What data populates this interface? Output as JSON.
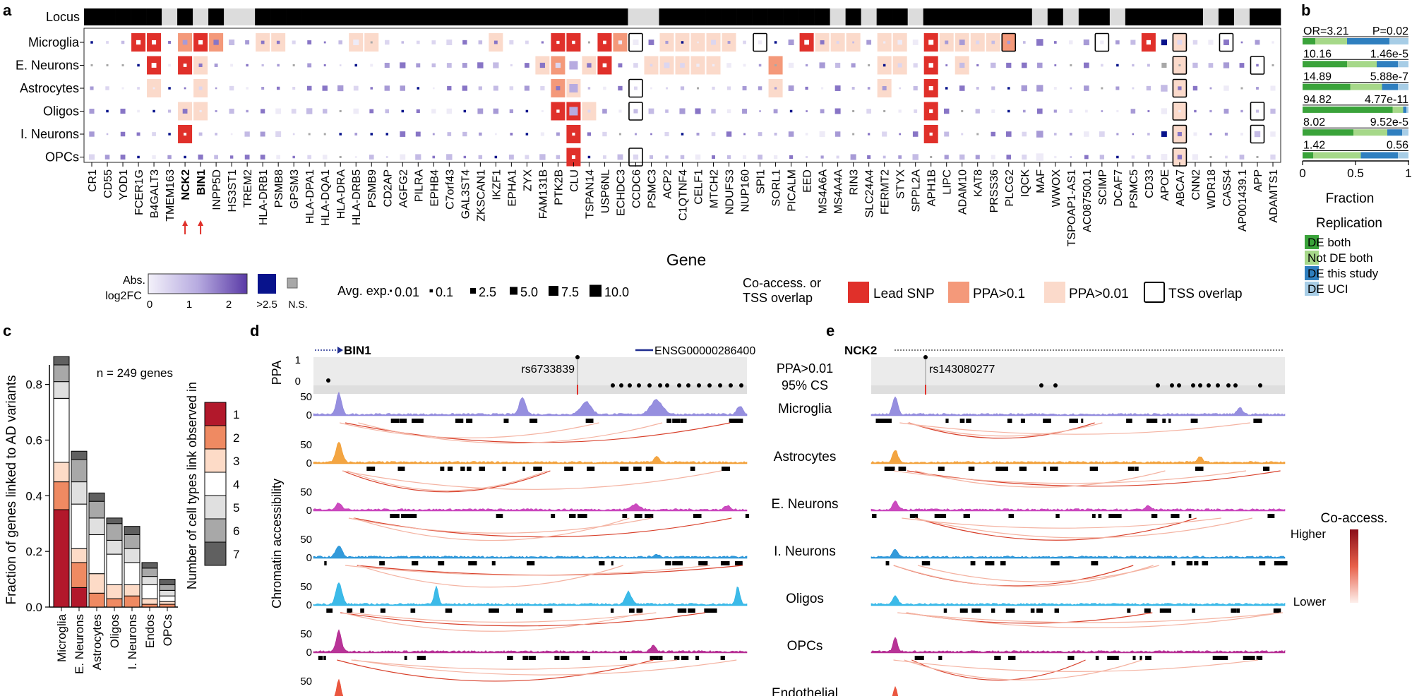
{
  "panels": {
    "a": "a",
    "b": "b",
    "c": "c",
    "d": "d",
    "e": "e"
  },
  "chart_data": [
    {
      "panel": "a",
      "type": "heatmap",
      "locus_label": "Locus",
      "xlabel": "Gene",
      "rows": [
        "Microglia",
        "E. Neurons",
        "Astrocytes",
        "Oligos",
        "I. Neurons",
        "OPCs"
      ],
      "genes": [
        "CR1",
        "CD55",
        "YOD1",
        "FCER1G",
        "B4GALT3",
        "TMEM163",
        "NCK2",
        "BIN1",
        "INPP5D",
        "HS3ST1",
        "TREM2",
        "HLA-DRB1",
        "PSMB8",
        "GPSM3",
        "HLA-DPA1",
        "HLA-DQA1",
        "HLA-DRA",
        "HLA-DRB5",
        "PSMB9",
        "CD2AP",
        "AGFG2",
        "PILRA",
        "EPHB4",
        "C7orf43",
        "GAL3ST4",
        "ZKSCAN1",
        "IKZF1",
        "EPHA1",
        "ZYX",
        "FAM131B",
        "PTK2B",
        "CLU",
        "TSPAN14",
        "USP6NL",
        "ECHDC3",
        "CCDC6",
        "PSMC3",
        "ACP2",
        "C1QTNF4",
        "CELF1",
        "MTCH2",
        "NDUFS3",
        "NUP160",
        "SPI1",
        "SORL1",
        "PICALM",
        "EED",
        "MS4A6A",
        "MS4A4A",
        "RIN3",
        "SLC24A4",
        "FERMT2",
        "STYX",
        "SPPL2A",
        "APH1B",
        "LIPC",
        "ADAM10",
        "KAT8",
        "PRSS36",
        "PLCG2",
        "IQCK",
        "MAF",
        "WWOX",
        "TSPOAP1-AS1",
        "AC087500.1",
        "SCIMP",
        "DCAF7",
        "PSMC5",
        "CD33",
        "APOE",
        "ABCA7",
        "CNN2",
        "WDR18",
        "CASS4",
        "AP001439.1",
        "APP",
        "ADAMTS1"
      ],
      "bold_genes": [
        "NCK2",
        "BIN1"
      ],
      "locus_blocks": [
        1,
        1,
        1,
        1,
        1,
        0,
        1,
        0,
        1,
        0,
        0,
        1,
        1,
        1,
        1,
        1,
        1,
        1,
        1,
        1,
        1,
        1,
        1,
        1,
        1,
        1,
        1,
        1,
        1,
        1,
        1,
        1,
        1,
        1,
        1,
        0,
        0,
        1,
        1,
        1,
        1,
        1,
        1,
        1,
        1,
        1,
        1,
        1,
        0,
        1,
        0,
        1,
        1,
        0,
        1,
        1,
        1,
        1,
        1,
        1,
        1,
        0,
        1,
        0,
        1,
        1,
        0,
        1,
        1,
        1,
        1,
        1,
        0,
        1,
        0,
        1,
        1
      ],
      "lead_snp": [
        [
          "FCER1G",
          "B4GALT3",
          "BIN1",
          "PTK2B",
          "CLU",
          "USP6NL",
          "EED",
          "APH1B",
          "CD33"
        ],
        [
          "B4GALT3",
          "NCK2",
          "USP6NL",
          "APH1B"
        ],
        [
          "APH1B"
        ],
        [
          "PTK2B",
          "CLU",
          "APH1B"
        ],
        [
          "NCK2",
          "CLU",
          "APH1B"
        ],
        [
          "CLU"
        ]
      ],
      "ppa_01": [
        [
          "NCK2",
          "INPP5D",
          "ECHDC3",
          "PLCG2"
        ],
        [
          "PTK2B",
          "SORL1"
        ],
        [
          "PTK2B"
        ],
        [],
        [],
        [
          "CLU"
        ]
      ],
      "ppa_001": [
        [
          "HLA-DRB1",
          "PSMB8",
          "HLA-DRB5",
          "PSMB9",
          "IKZF1",
          "ACP2",
          "C1QTNF4",
          "CELF1",
          "MTCH2",
          "NDUFS3",
          "MS4A6A",
          "MS4A4A",
          "RIN3",
          "FERMT2",
          "STYX",
          "LIPC",
          "ADAM10",
          "KAT8",
          "PRSS36",
          "ABCA7"
        ],
        [
          "BIN1",
          "FAM131B",
          "TSPAN14",
          "PSMC3",
          "ACP2",
          "C1QTNF4",
          "CELF1",
          "MTCH2",
          "SORL1",
          "FERMT2",
          "STYX",
          "ADAM10",
          "ABCA7"
        ],
        [
          "B4GALT3",
          "BIN1",
          "CLU",
          "SORL1",
          "FERMT2",
          "ABCA7"
        ],
        [
          "NCK2",
          "BIN1",
          "TSPAN14",
          "ABCA7"
        ],
        [
          "ABCA7"
        ],
        [
          "ABCA7"
        ]
      ],
      "tss": [
        [
          "CCDC6",
          "SPI1",
          "PLCG2",
          "SCIMP",
          "ABCA7",
          "CASS4"
        ],
        [
          "ABCA7",
          "APP"
        ],
        [
          "CCDC6",
          "ABCA7"
        ],
        [
          "CCDC6",
          "ABCA7",
          "APP"
        ],
        [
          "ABCA7",
          "APP"
        ],
        [
          "CCDC6",
          "ABCA7"
        ]
      ],
      "legend": {
        "fc_title_1": "Abs.",
        "fc_title_2": "log2FC",
        "fc_ticks": [
          "0",
          "1",
          "2"
        ],
        "fc_high": ">2.5",
        "fc_ns": "N.S.",
        "exp_title": "Avg. exp.",
        "exp_values": [
          "0.01",
          "0.1",
          "2.5",
          "5.0",
          "7.5",
          "10.0"
        ],
        "coaccess_title_1": "Co-access. or",
        "coaccess_title_2": "TSS  overlap",
        "cat_labels": [
          "Lead SNP",
          "PPA>0.1",
          "PPA>0.01",
          "TSS overlap"
        ],
        "colors": {
          "lead": "#e0302a",
          "ppa01": "#f4997a",
          "ppa001": "#fbdacb",
          "fc_low": "#f0eef8",
          "fc_high": "#5a3aa6",
          "fc_max": "#08138c",
          "ns": "#a8a8a8"
        }
      }
    },
    {
      "panel": "b",
      "type": "bar",
      "xlabel": "Fraction",
      "xticks": [
        "0",
        "0.5",
        "1"
      ],
      "xlim": [
        0,
        1
      ],
      "bars": [
        {
          "or": "OR=3.21",
          "p": "P=0.02",
          "fractions": [
            0.12,
            0.3,
            0.4,
            0.18
          ]
        },
        {
          "or": "10.16",
          "p": "1.46e-5",
          "fractions": [
            0.42,
            0.28,
            0.2,
            0.1
          ]
        },
        {
          "or": "14.89",
          "p": "5.88e-7",
          "fractions": [
            0.45,
            0.3,
            0.15,
            0.1
          ]
        },
        {
          "or": "94.82",
          "p": "4.77e-11",
          "fractions": [
            0.85,
            0.1,
            0.03,
            0.02
          ]
        },
        {
          "or": "8.02",
          "p": "9.52e-5",
          "fractions": [
            0.48,
            0.32,
            0.14,
            0.06
          ]
        },
        {
          "or": "1.42",
          "p": "0.56",
          "fractions": [
            0.1,
            0.45,
            0.35,
            0.1
          ]
        }
      ],
      "legend_title": "Replication",
      "legend": [
        {
          "label": "DE both",
          "color": "#3aa33a"
        },
        {
          "label": "Not DE both",
          "color": "#a6d889"
        },
        {
          "label": "DE this study",
          "color": "#2f7fbf"
        },
        {
          "label": "DE UCI",
          "color": "#a7cde6"
        }
      ]
    },
    {
      "panel": "c",
      "type": "bar",
      "stacked": true,
      "ylabel": "Fraction of genes linked to AD variants",
      "n_label": "n = 249 genes",
      "ylim": [
        0,
        0.87
      ],
      "yticks": [
        0.0,
        0.2,
        0.4,
        0.6,
        0.8
      ],
      "categories": [
        "Microglia",
        "E. Neurons",
        "Astrocytes",
        "Oligos",
        "I. Neurons",
        "Endos",
        "OPCs"
      ],
      "stack_legend_title": "Number of cell types link observed in",
      "stack_labels": [
        "1",
        "2",
        "3",
        "4",
        "5",
        "6",
        "7"
      ],
      "stack_colors": [
        "#b2182b",
        "#ef8a62",
        "#fddbc7",
        "#ffffff",
        "#e0e0e0",
        "#a8a8a8",
        "#606060"
      ],
      "series": [
        {
          "name": "1",
          "values": [
            0.35,
            0.07,
            0.0,
            0.0,
            0.0,
            0.0,
            0.0
          ]
        },
        {
          "name": "2",
          "values": [
            0.1,
            0.09,
            0.05,
            0.03,
            0.04,
            0.01,
            0.01
          ]
        },
        {
          "name": "3",
          "values": [
            0.07,
            0.05,
            0.07,
            0.05,
            0.04,
            0.02,
            0.01
          ]
        },
        {
          "name": "4",
          "values": [
            0.23,
            0.16,
            0.14,
            0.11,
            0.08,
            0.05,
            0.02
          ]
        },
        {
          "name": "5",
          "values": [
            0.06,
            0.08,
            0.06,
            0.05,
            0.05,
            0.03,
            0.02
          ]
        },
        {
          "name": "6",
          "values": [
            0.06,
            0.08,
            0.06,
            0.06,
            0.05,
            0.03,
            0.02
          ]
        },
        {
          "name": "7",
          "values": [
            0.03,
            0.03,
            0.03,
            0.02,
            0.03,
            0.02,
            0.02
          ]
        }
      ]
    },
    {
      "panel": "d",
      "type": "area",
      "gene_label": "BIN1",
      "other_gene": "ENSG00000286400",
      "snp": "rs6733839",
      "ppa_label": "PPA",
      "ppa_ticks": [
        "1",
        "0"
      ],
      "ylabel": "Chromatin accessibility",
      "track_ymax": "50",
      "track_ymin": "0",
      "tracks": [
        {
          "name": "Microglia",
          "color": "#8b83dc"
        },
        {
          "name": "Astrocytes",
          "color": "#f29b2e"
        },
        {
          "name": "E. Neurons",
          "color": "#c537b8"
        },
        {
          "name": "I. Neurons",
          "color": "#1d8fd6"
        },
        {
          "name": "Oligos",
          "color": "#27b2e6"
        },
        {
          "name": "OPCs",
          "color": "#b01e8c"
        },
        {
          "name": "Endothelial",
          "color": "#e8452b"
        }
      ]
    },
    {
      "panel": "e",
      "type": "area",
      "gene_label": "NCK2",
      "snp": "rs143080277",
      "center_labels": [
        "PPA>0.01",
        "95% CS"
      ],
      "coaccess_title": "Co-access.",
      "coaccess_high": "Higher",
      "coaccess_low": "Lower"
    }
  ]
}
